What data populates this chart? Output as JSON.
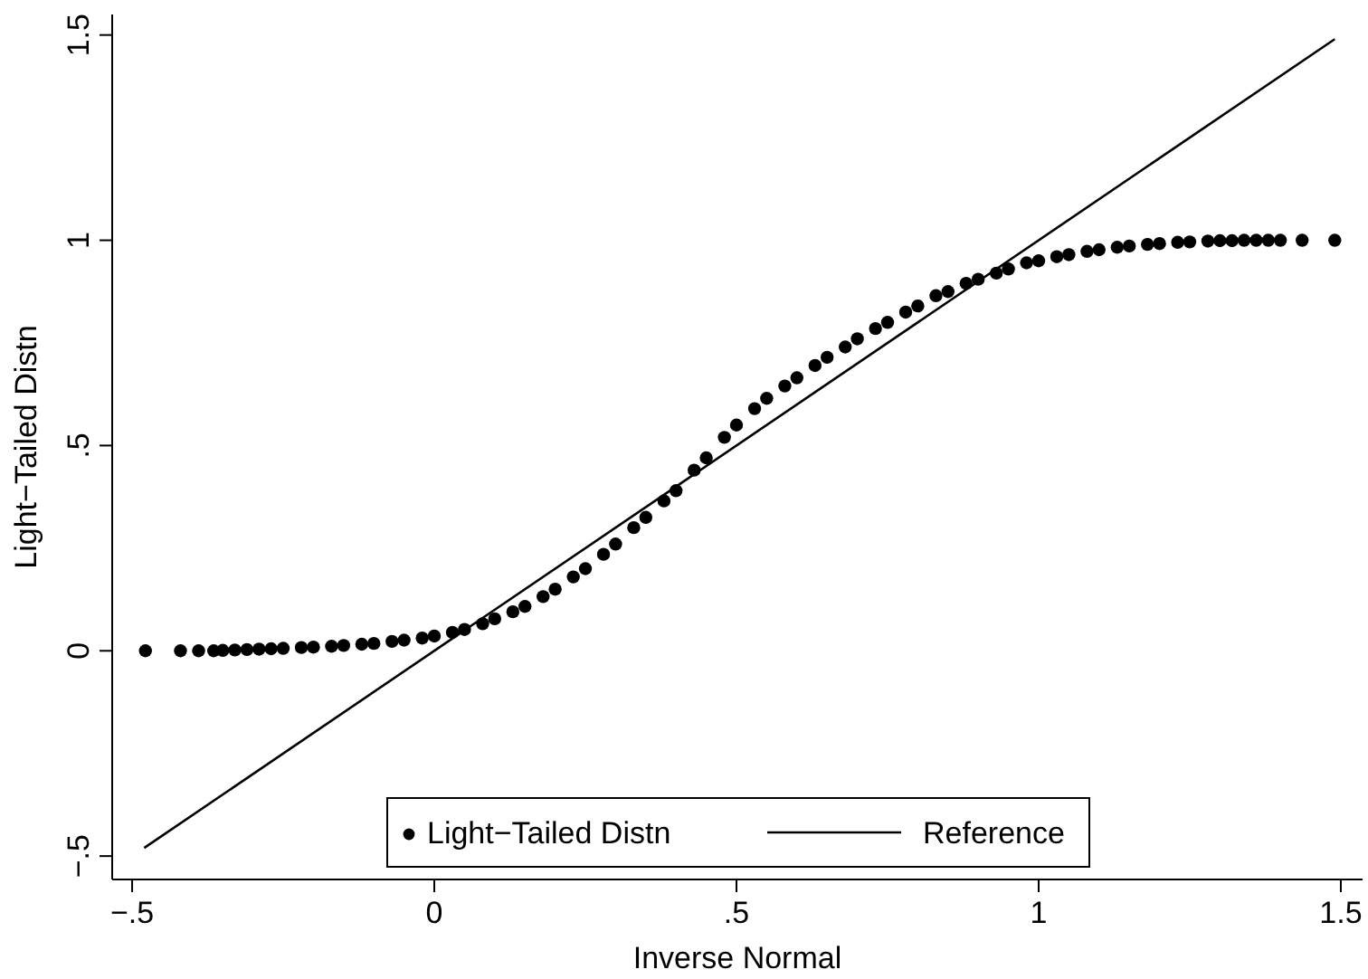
{
  "chart_data": {
    "type": "scatter",
    "xlabel": "Inverse Normal",
    "ylabel": "Light−Tailed Distn",
    "xlim": [
      -0.533,
      1.536
    ],
    "ylim": [
      -0.557,
      1.55
    ],
    "xticks": [
      {
        "value": -0.5,
        "label": "−.5"
      },
      0,
      {
        "value": 0.5,
        "label": ".5"
      },
      1,
      {
        "value": 1.5,
        "label": "1.5"
      }
    ],
    "yticks": [
      {
        "value": -0.5,
        "label": "−.5"
      },
      0,
      {
        "value": 0.5,
        "label": ".5"
      },
      1,
      {
        "value": 1.5,
        "label": "1.5"
      }
    ],
    "legend": "bottom",
    "grid": false,
    "series": [
      {
        "name": "Light−Tailed Distn",
        "marker": "circle",
        "color": "#000000",
        "x": [
          -0.478,
          -0.42,
          -0.39,
          -0.365,
          -0.35,
          -0.33,
          -0.31,
          -0.29,
          -0.27,
          -0.25,
          -0.22,
          -0.2,
          -0.17,
          -0.15,
          -0.12,
          -0.1,
          -0.07,
          -0.05,
          -0.02,
          0,
          0.03,
          0.05,
          0.08,
          0.1,
          0.13,
          0.15,
          0.18,
          0.2,
          0.23,
          0.25,
          0.28,
          0.3,
          0.33,
          0.35,
          0.38,
          0.4,
          0.43,
          0.45,
          0.48,
          0.5,
          0.53,
          0.55,
          0.58,
          0.6,
          0.63,
          0.65,
          0.68,
          0.7,
          0.73,
          0.75,
          0.78,
          0.8,
          0.83,
          0.85,
          0.88,
          0.9,
          0.93,
          0.95,
          0.98,
          1,
          1.03,
          1.05,
          1.08,
          1.1,
          1.13,
          1.15,
          1.18,
          1.2,
          1.23,
          1.25,
          1.28,
          1.3,
          1.32,
          1.34,
          1.36,
          1.38,
          1.4,
          1.436,
          1.49
        ],
        "values": [
          0,
          0,
          0,
          0,
          0.001,
          0.002,
          0.003,
          0.004,
          0.005,
          0.006,
          0.008,
          0.009,
          0.011,
          0.013,
          0.016,
          0.018,
          0.023,
          0.026,
          0.031,
          0.036,
          0.045,
          0.052,
          0.066,
          0.078,
          0.095,
          0.108,
          0.132,
          0.15,
          0.18,
          0.2,
          0.235,
          0.26,
          0.3,
          0.325,
          0.365,
          0.39,
          0.44,
          0.47,
          0.52,
          0.55,
          0.59,
          0.615,
          0.645,
          0.665,
          0.695,
          0.715,
          0.74,
          0.76,
          0.785,
          0.8,
          0.825,
          0.84,
          0.865,
          0.875,
          0.895,
          0.905,
          0.92,
          0.93,
          0.945,
          0.95,
          0.96,
          0.965,
          0.973,
          0.977,
          0.983,
          0.986,
          0.99,
          0.992,
          0.995,
          0.996,
          0.998,
          0.999,
          0.999,
          1,
          1,
          1,
          1,
          1,
          1
        ]
      },
      {
        "name": "Reference",
        "type": "line",
        "marker": "none",
        "line_style": "solid",
        "color": "#000000",
        "x": [
          -0.48,
          1.49
        ],
        "values": [
          -0.48,
          1.49
        ]
      }
    ]
  }
}
